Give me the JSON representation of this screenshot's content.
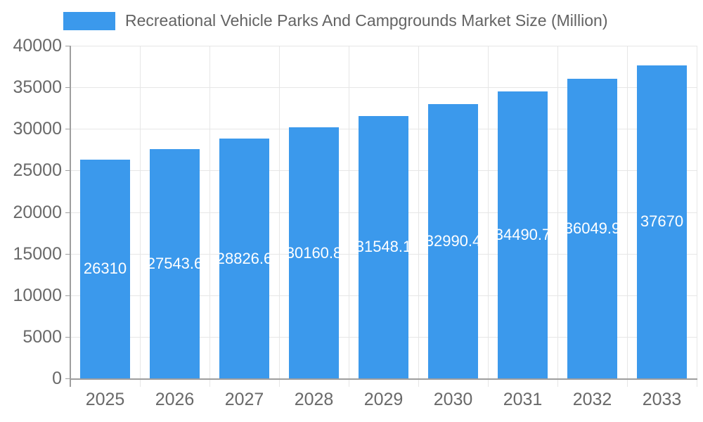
{
  "chart_data": {
    "type": "bar",
    "title": "Recreational Vehicle Parks And Campgrounds Market Size (Million)",
    "categories": [
      "2025",
      "2026",
      "2027",
      "2028",
      "2029",
      "2030",
      "2031",
      "2032",
      "2033"
    ],
    "values": [
      26310,
      27543.6,
      28826.6,
      30160.8,
      31548.1,
      32990.4,
      34490.7,
      36049.9,
      37670
    ],
    "value_labels": [
      "26310",
      "27543.6",
      "28826.6",
      "30160.8",
      "31548.1",
      "32990.4",
      "34490.7",
      "36049.9",
      "37670"
    ],
    "xlabel": "",
    "ylabel": "",
    "ylim": [
      0,
      40000
    ],
    "yticks": [
      0,
      5000,
      10000,
      15000,
      20000,
      25000,
      30000,
      35000,
      40000
    ],
    "grid": true,
    "legend_position": "top",
    "colors": {
      "bar": "#3b99ec",
      "grid": "#e6e6e6",
      "axis": "#9e9e9e",
      "tick_text": "#696969",
      "legend_text": "#636363",
      "value_label_text": "#ffffff",
      "background": "#ffffff"
    }
  }
}
